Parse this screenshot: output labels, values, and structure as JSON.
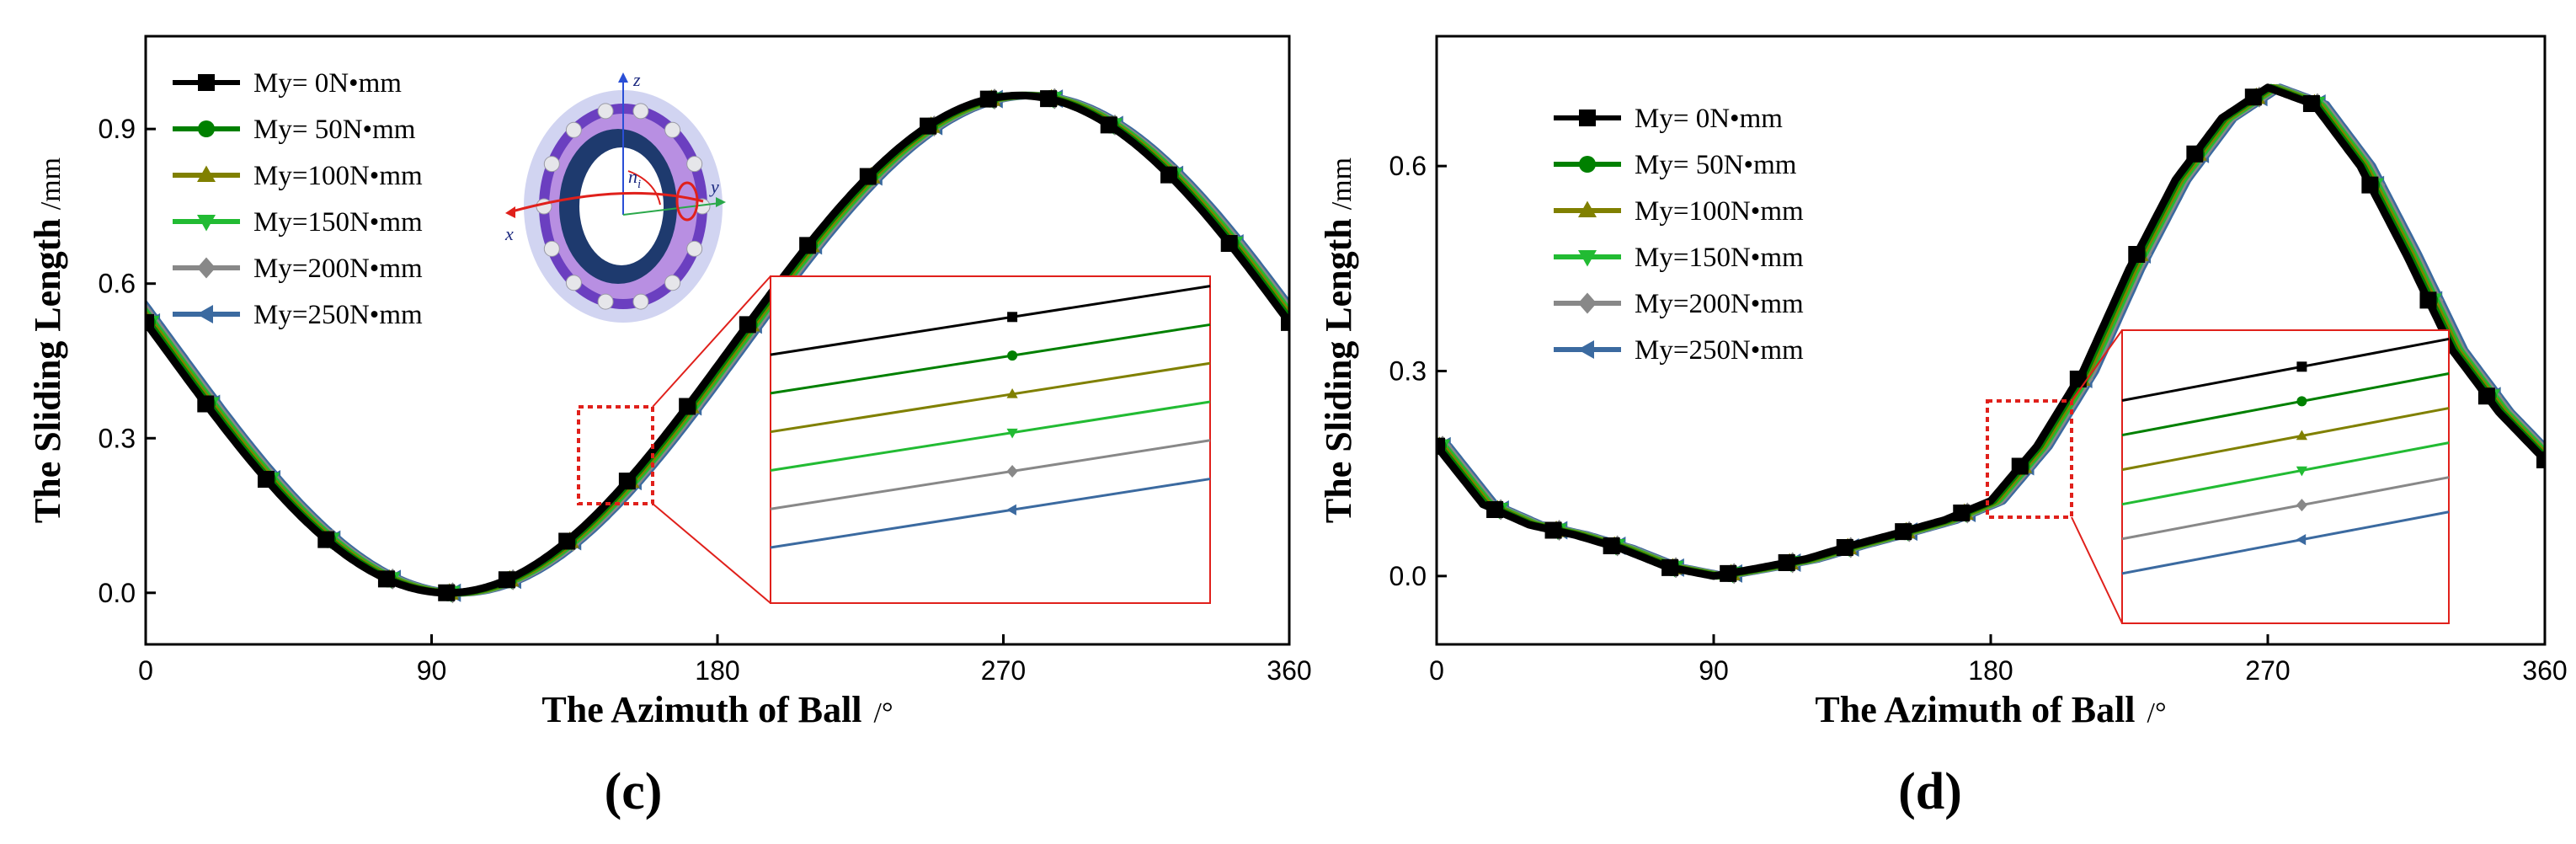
{
  "chart_data": [
    {
      "type": "line",
      "panel_label": "(c)",
      "xlabel": "The Azimuth of Ball",
      "xunit": "/°",
      "ylabel": "The Sliding Length",
      "yunit": "/mm",
      "xlim": [
        0,
        360
      ],
      "ylim": [
        -0.1,
        1.08
      ],
      "xticks": [
        0,
        90,
        180,
        270,
        360
      ],
      "xtick_labels": [
        "0",
        "90",
        "180",
        "270",
        "360"
      ],
      "yticks": [
        0.0,
        0.3,
        0.6,
        0.9
      ],
      "ytick_labels": [
        "0.0",
        "0.3",
        "0.6",
        "0.9"
      ],
      "legend_position": "top-left",
      "inset_position": "bottom-right",
      "bearing_axis_labels": [
        "z",
        "y",
        "x"
      ],
      "bearing_speed_label": "n",
      "bearing_speed_subscript": "i",
      "curve": {
        "shape": "cosine",
        "min_x": 95,
        "min_y": 0.0,
        "max_y": 0.965
      },
      "marker_x": [
        0,
        18.9,
        37.9,
        56.8,
        75.8,
        94.7,
        113.7,
        132.6,
        151.6,
        170.5,
        189.5,
        208.4,
        227.4,
        246.3,
        265.3,
        284.2,
        303.2,
        322.1,
        341.1,
        360
      ],
      "series": [
        {
          "name": "My=    0N•mm",
          "color": "#000000",
          "marker": "square",
          "shift": 0
        },
        {
          "name": "My=  50N•mm",
          "color": "#008000",
          "marker": "circle",
          "shift": 0.8
        },
        {
          "name": "My=100N•mm",
          "color": "#808000",
          "marker": "triangle-up",
          "shift": 1.6
        },
        {
          "name": "My=150N•mm",
          "color": "#22bb33",
          "marker": "triangle-down",
          "shift": 2.4
        },
        {
          "name": "My=200N•mm",
          "color": "#888888",
          "marker": "diamond",
          "shift": 3.2
        },
        {
          "name": "My=250N•mm",
          "color": "#3b6aa0",
          "marker": "triangle-left",
          "shift": 4.0
        }
      ]
    },
    {
      "type": "line",
      "panel_label": "(d)",
      "xlabel": "The Azimuth of Ball",
      "xunit": "/°",
      "ylabel": "The Sliding Length",
      "yunit": "/mm",
      "xlim": [
        0,
        360
      ],
      "ylim": [
        -0.1,
        0.79
      ],
      "xticks": [
        0,
        90,
        180,
        270,
        360
      ],
      "xtick_labels": [
        "0",
        "90",
        "180",
        "270",
        "360"
      ],
      "yticks": [
        0.0,
        0.3,
        0.6
      ],
      "ytick_labels": [
        "0.0",
        "0.3",
        "0.6"
      ],
      "legend_position": "top-left",
      "inset_position": "bottom-right",
      "curve": {
        "shape": "piecewise",
        "points": [
          [
            0,
            0.19
          ],
          [
            15,
            0.105
          ],
          [
            30,
            0.075
          ],
          [
            45,
            0.06
          ],
          [
            60,
            0.04
          ],
          [
            75,
            0.013
          ],
          [
            90,
            0.0
          ],
          [
            105,
            0.012
          ],
          [
            120,
            0.025
          ],
          [
            135,
            0.045
          ],
          [
            150,
            0.063
          ],
          [
            165,
            0.082
          ],
          [
            180,
            0.11
          ],
          [
            195,
            0.19
          ],
          [
            210,
            0.3
          ],
          [
            225,
            0.45
          ],
          [
            240,
            0.58
          ],
          [
            255,
            0.67
          ],
          [
            270,
            0.715
          ],
          [
            285,
            0.69
          ],
          [
            300,
            0.6
          ],
          [
            315,
            0.47
          ],
          [
            330,
            0.33
          ],
          [
            345,
            0.24
          ],
          [
            360,
            0.17
          ]
        ]
      },
      "marker_x": [
        0,
        18.9,
        37.9,
        56.8,
        75.8,
        94.7,
        113.7,
        132.6,
        151.6,
        170.5,
        189.5,
        208.4,
        227.4,
        246.3,
        265.3,
        284.2,
        303.2,
        322.1,
        341.1,
        360
      ],
      "series": [
        {
          "name": "My=    0N•mm",
          "color": "#000000",
          "marker": "square",
          "shift": 0
        },
        {
          "name": "My=  50N•mm",
          "color": "#008000",
          "marker": "circle",
          "shift": 0.8
        },
        {
          "name": "My=100N•mm",
          "color": "#808000",
          "marker": "triangle-up",
          "shift": 1.6
        },
        {
          "name": "My=150N•mm",
          "color": "#22bb33",
          "marker": "triangle-down",
          "shift": 2.4
        },
        {
          "name": "My=200N•mm",
          "color": "#888888",
          "marker": "diamond",
          "shift": 3.2
        },
        {
          "name": "My=250N•mm",
          "color": "#3b6aa0",
          "marker": "triangle-left",
          "shift": 4.0
        }
      ]
    }
  ]
}
